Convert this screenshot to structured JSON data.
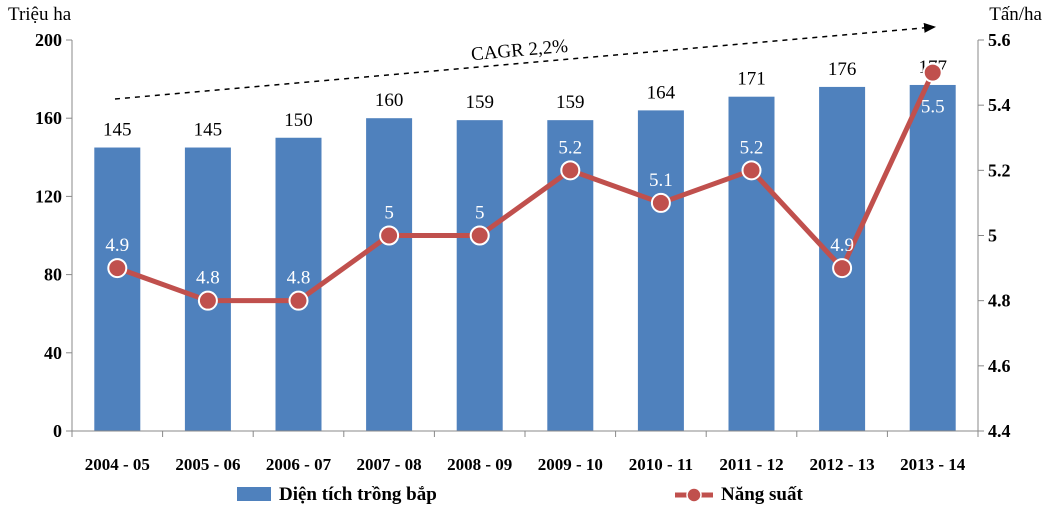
{
  "chart_data": {
    "type": "bar",
    "categories": [
      "2004 - 05",
      "2005 - 06",
      "2006 - 07",
      "2007 - 08",
      "2008 - 09",
      "2009 - 10",
      "2010 - 11",
      "2011 - 12",
      "2012 - 13",
      "2013 - 14"
    ],
    "series": [
      {
        "name": "Diện tích trồng bắp",
        "type": "bar",
        "axis": "left",
        "color": "#4F81BD",
        "values": [
          145,
          145,
          150,
          160,
          159,
          159,
          164,
          171,
          176,
          177
        ]
      },
      {
        "name": "Năng suất",
        "type": "line",
        "axis": "right",
        "color": "#C0504D",
        "values": [
          4.9,
          4.8,
          4.8,
          5,
          5,
          5.2,
          5.1,
          5.2,
          4.9,
          5.5
        ]
      }
    ],
    "ylabel_left": "Triệu ha",
    "ylabel_right": "Tấn/ha",
    "ylim_left": [
      0,
      200
    ],
    "yticks_left": [
      "0",
      "40",
      "80",
      "120",
      "160",
      "200"
    ],
    "ylim_right": [
      4.4,
      5.6
    ],
    "yticks_right": [
      "4.4",
      "4.6",
      "4.8",
      "5",
      "5.2",
      "5.4",
      "5.6"
    ],
    "annotation": "CAGR 2,2%",
    "legend_position": "bottom",
    "grid": false
  }
}
